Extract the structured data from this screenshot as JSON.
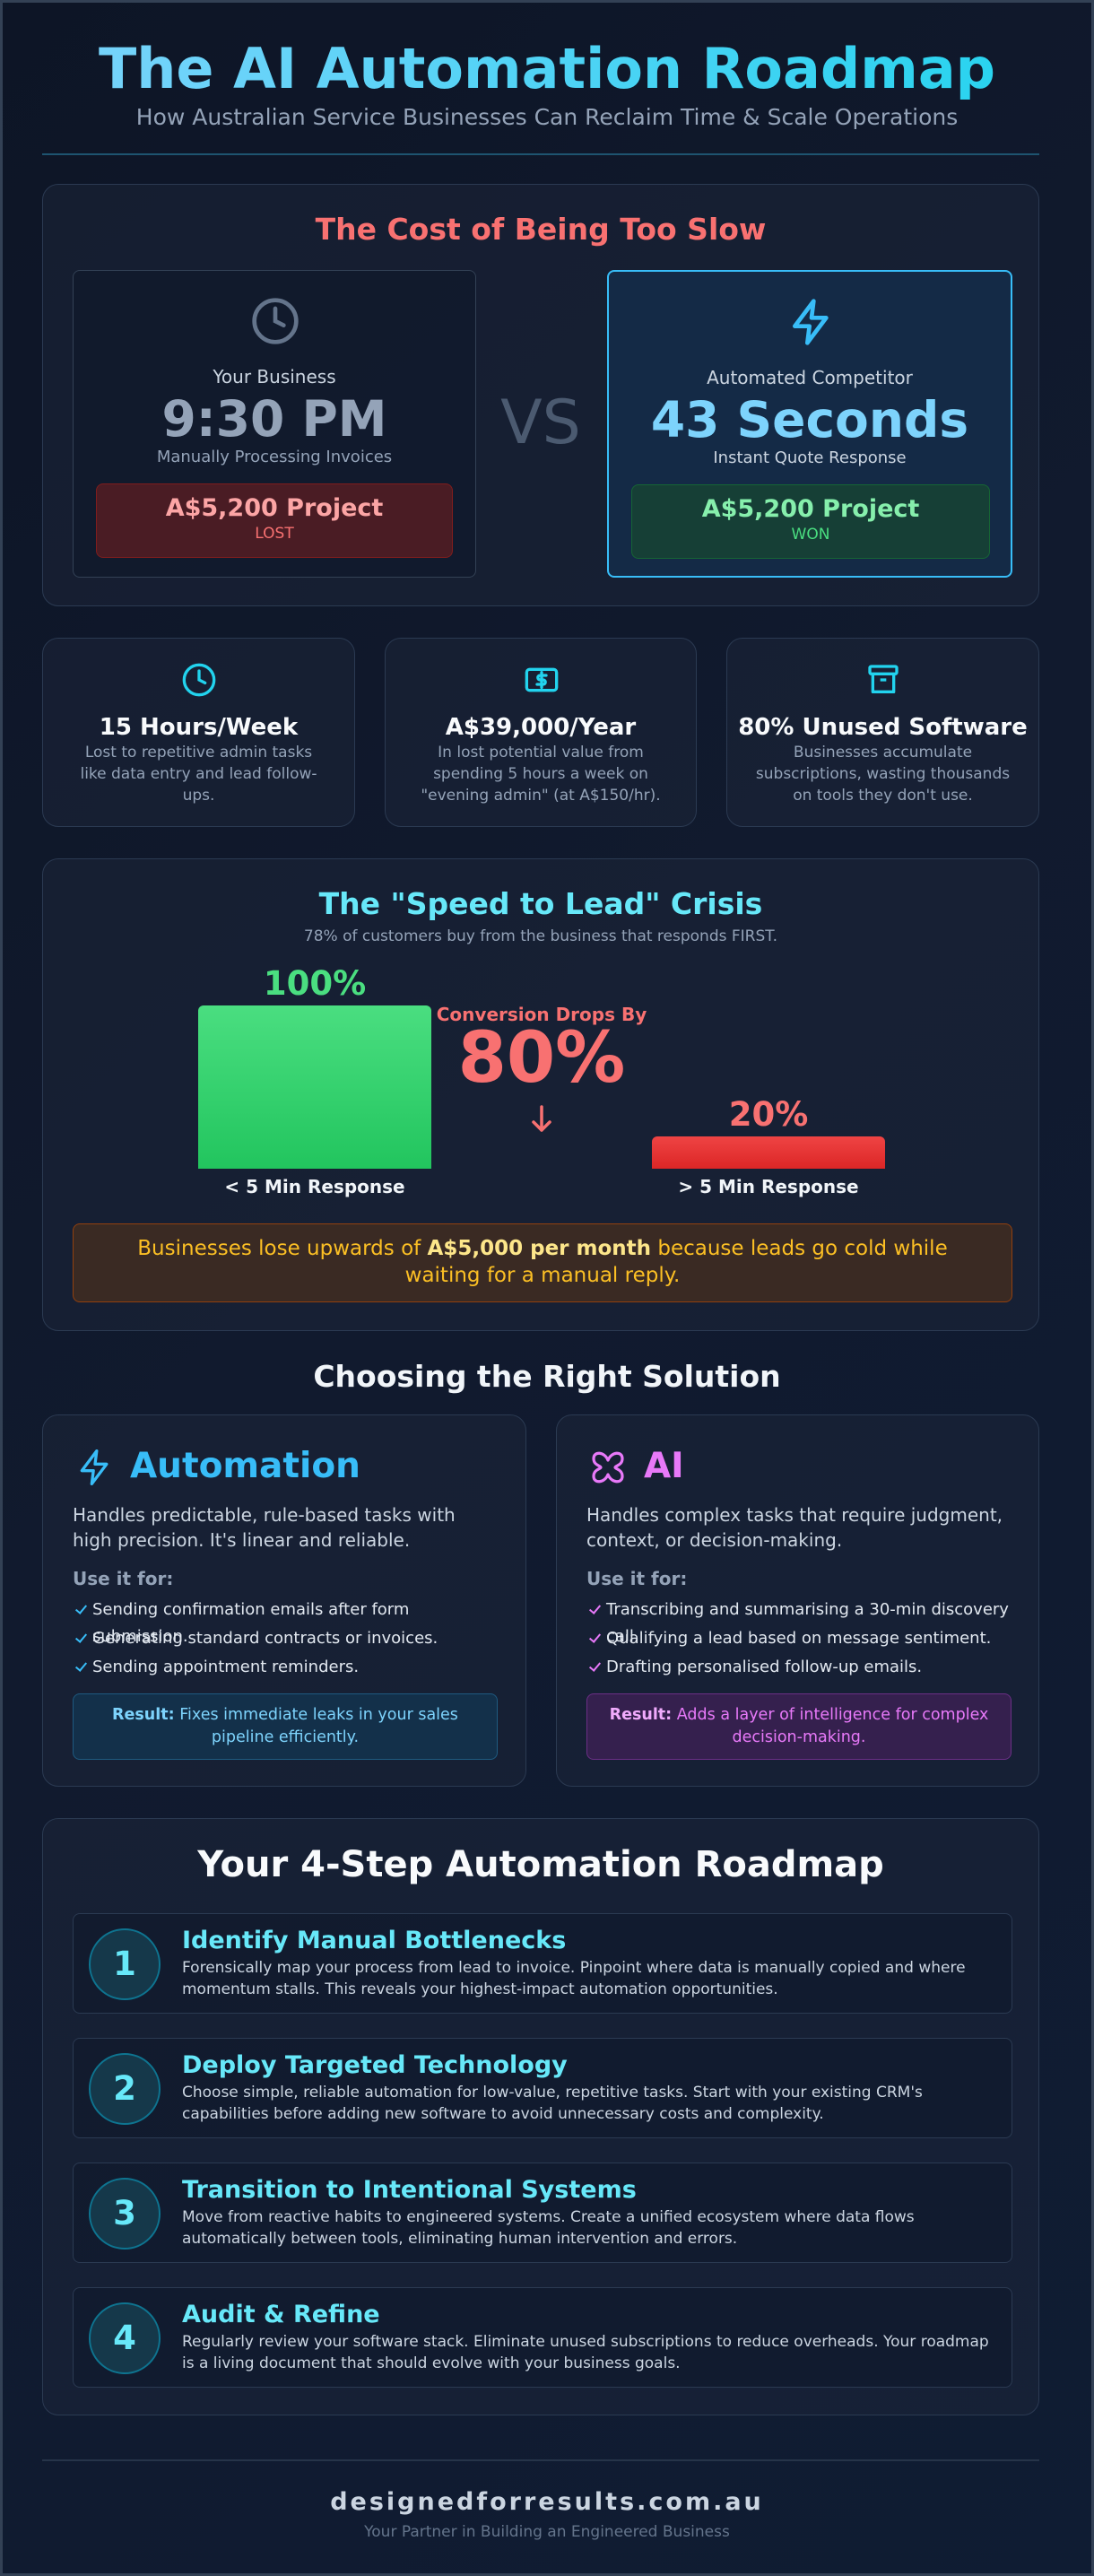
{
  "header": {
    "title": "The AI Automation Roadmap",
    "subtitle": "How Australian Service Businesses Can Reclaim Time & Scale Operations"
  },
  "cost": {
    "title": "The Cost of Being Too Slow",
    "vs": "VS",
    "left": {
      "label": "Your Business",
      "value": "9:30 PM",
      "caption": "Manually Processing Invoices",
      "project": "A$5,200 Project",
      "status": "LOST"
    },
    "right": {
      "label": "Automated Competitor",
      "value": "43 Seconds",
      "caption": "Instant Quote Response",
      "project": "A$5,200 Project",
      "status": "WON"
    }
  },
  "stats": [
    {
      "title": "15 Hours/Week",
      "text": "Lost to repetitive admin tasks like data entry and lead follow-ups."
    },
    {
      "title": "A$39,000/Year",
      "text": "In lost potential value from spending 5 hours a week on \"evening admin\" (at A$150/hr)."
    },
    {
      "title": "80% Unused Software",
      "text": "Businesses accumulate subscriptions, wasting thousands on tools they don't use."
    }
  ],
  "speed": {
    "title": "The \"Speed to Lead\" Crisis",
    "subtitle": "78% of customers buy from the business that responds FIRST.",
    "bars": [
      {
        "label": "< 5 Min Response",
        "value": 100,
        "value_label": "100%"
      },
      {
        "label": "> 5 Min Response",
        "value": 20,
        "value_label": "20%"
      }
    ],
    "drop_label": "Conversion Drops By",
    "drop_value": "80%",
    "callout": {
      "before": "Businesses lose upwards of ",
      "bold": "A$5,000 per month",
      "after": " because leads go cold while waiting for a manual reply."
    }
  },
  "solutions": {
    "title": "Choosing the Right Solution",
    "cards": [
      {
        "name": "Automation",
        "description": "Handles predictable, rule-based tasks with high precision. It's linear and reliable.",
        "use_label": "Use it for:",
        "uses": [
          "Sending confirmation emails after form submission.",
          "Generating standard contracts or invoices.",
          "Sending appointment reminders."
        ],
        "result_label": "Result:",
        "result": "Fixes immediate leaks in your sales pipeline efficiently."
      },
      {
        "name": "AI",
        "description": "Handles complex tasks that require judgment, context, or decision-making.",
        "use_label": "Use it for:",
        "uses": [
          "Transcribing and summarising a 30-min discovery call.",
          "Qualifying a lead based on message sentiment.",
          "Drafting personalised follow-up emails."
        ],
        "result_label": "Result:",
        "result": "Adds a layer of intelligence for complex decision-making."
      }
    ]
  },
  "roadmap": {
    "title": "Your 4-Step Automation Roadmap",
    "steps": [
      {
        "number": "1",
        "title": "Identify Manual Bottlenecks",
        "text": "Forensically map your process from lead to invoice. Pinpoint where data is manually copied and where momentum stalls. This reveals your highest-impact automation opportunities."
      },
      {
        "number": "2",
        "title": "Deploy Targeted Technology",
        "text": "Choose simple, reliable automation for low-value, repetitive tasks. Start with your existing CRM's capabilities before adding new software to avoid unnecessary costs and complexity."
      },
      {
        "number": "3",
        "title": "Transition to Intentional Systems",
        "text": "Move from reactive habits to engineered systems. Create a unified ecosystem where data flows automatically between tools, eliminating human intervention and errors."
      },
      {
        "number": "4",
        "title": "Audit & Refine",
        "text": "Regularly review your software stack. Eliminate unused subscriptions to reduce overheads. Your roadmap is a living document that should evolve with your business goals."
      }
    ]
  },
  "footer": {
    "domain": "designedforresults.com.au",
    "tagline": "Your Partner in Building an Engineered Business"
  }
}
